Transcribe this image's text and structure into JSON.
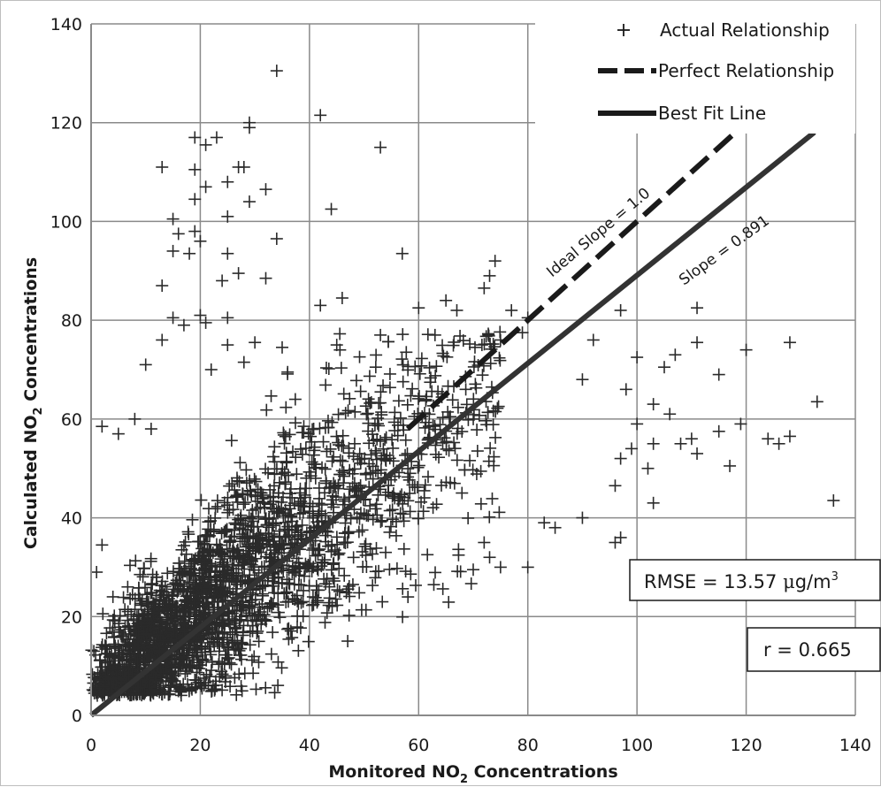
{
  "chart_data": {
    "type": "scatter",
    "xlabel": "Monitored NO",
    "xlabel_sub": "2",
    "xlabel_suffix": " Concentrations",
    "ylabel": "Calculated NO",
    "ylabel_sub": "2",
    "ylabel_suffix": " Concentrations",
    "xlim": [
      0,
      140
    ],
    "ylim": [
      0,
      140
    ],
    "xticks": [
      "0",
      "20",
      "40",
      "60",
      "80",
      "100",
      "120",
      "140"
    ],
    "yticks": [
      "0",
      "20",
      "40",
      "60",
      "80",
      "100",
      "120",
      "140"
    ],
    "grid": true,
    "legend_position": "top-right",
    "legend": [
      {
        "label": "Actual Relationship",
        "style": "plus"
      },
      {
        "label": "Perfect Relationship",
        "style": "dashed"
      },
      {
        "label": "Best Fit Line",
        "style": "solid"
      }
    ],
    "series": [
      {
        "name": "Actual Relationship",
        "marker": "plus",
        "points": [
          [
            34,
            130.5
          ],
          [
            42,
            121.5
          ],
          [
            29,
            120
          ],
          [
            29,
            119
          ],
          [
            53,
            115
          ],
          [
            19,
            117
          ],
          [
            21,
            115.5
          ],
          [
            23,
            117
          ],
          [
            13,
            111
          ],
          [
            19,
            110.5
          ],
          [
            28,
            111
          ],
          [
            27,
            111
          ],
          [
            32,
            106.5
          ],
          [
            19,
            104.5
          ],
          [
            21,
            107
          ],
          [
            25,
            108
          ],
          [
            29,
            104
          ],
          [
            44,
            102.5
          ],
          [
            25,
            101
          ],
          [
            15,
            100.5
          ],
          [
            16,
            97.5
          ],
          [
            19,
            98
          ],
          [
            20,
            96
          ],
          [
            34,
            96.5
          ],
          [
            15,
            94
          ],
          [
            18,
            93.5
          ],
          [
            25,
            93.5
          ],
          [
            57,
            93.5
          ],
          [
            74,
            92
          ],
          [
            73,
            89
          ],
          [
            72,
            86.5
          ],
          [
            32,
            88.5
          ],
          [
            24,
            88
          ],
          [
            27,
            89.5
          ],
          [
            13,
            87
          ],
          [
            46,
            84.5
          ],
          [
            42,
            83
          ],
          [
            65,
            84
          ],
          [
            60,
            82.5
          ],
          [
            67,
            82
          ],
          [
            77,
            82
          ],
          [
            80,
            80.5
          ],
          [
            97,
            82
          ],
          [
            111,
            82.5
          ],
          [
            15,
            80.5
          ],
          [
            20,
            81
          ],
          [
            25,
            80.5
          ],
          [
            17,
            79
          ],
          [
            21,
            79.5
          ],
          [
            25,
            75
          ],
          [
            13,
            76
          ],
          [
            30,
            75.5
          ],
          [
            35,
            74.5
          ],
          [
            45,
            75
          ],
          [
            53,
            77
          ],
          [
            63,
            77
          ],
          [
            75,
            76
          ],
          [
            92,
            76
          ],
          [
            100,
            72.5
          ],
          [
            111,
            75.5
          ],
          [
            128,
            75.5
          ],
          [
            107,
            73
          ],
          [
            105,
            70.5
          ],
          [
            10,
            71
          ],
          [
            22,
            70
          ],
          [
            28,
            71.5
          ],
          [
            36,
            69.5
          ],
          [
            115,
            69
          ],
          [
            90,
            68
          ],
          [
            98,
            66
          ],
          [
            103,
            63
          ],
          [
            106,
            61
          ],
          [
            133,
            63.5
          ],
          [
            2,
            58.5
          ],
          [
            5,
            57
          ],
          [
            8,
            60
          ],
          [
            11,
            58
          ],
          [
            100,
            59
          ],
          [
            103,
            55
          ],
          [
            110,
            56
          ],
          [
            119,
            59
          ],
          [
            120,
            74
          ],
          [
            124,
            56
          ],
          [
            126,
            55
          ],
          [
            128,
            56.5
          ],
          [
            115,
            57.5
          ],
          [
            117,
            50.5
          ],
          [
            108,
            55
          ],
          [
            111,
            53
          ],
          [
            97,
            52
          ],
          [
            99,
            54
          ],
          [
            102,
            50
          ],
          [
            96,
            46.5
          ],
          [
            103,
            43
          ],
          [
            136,
            43.5
          ],
          [
            96,
            35
          ],
          [
            97,
            36
          ],
          [
            90,
            40
          ],
          [
            83,
            39
          ],
          [
            85,
            38
          ],
          [
            80,
            30
          ],
          [
            75,
            30
          ],
          [
            70,
            29.5
          ],
          [
            72,
            35
          ],
          [
            73,
            32
          ],
          [
            2,
            34.5
          ],
          [
            1,
            29
          ],
          [
            4,
            24
          ],
          [
            0.5,
            13
          ],
          [
            0.5,
            5
          ]
        ]
      },
      {
        "name": "Perfect Relationship",
        "style": "dashed",
        "x": [
          0,
          140
        ],
        "y": [
          0,
          140
        ]
      },
      {
        "name": "Best Fit Line",
        "style": "solid",
        "slope": 0.891,
        "x": [
          0,
          140
        ],
        "y": [
          0,
          124.74
        ]
      }
    ],
    "annotations": [
      {
        "text": "Ideal Slope = 1.0"
      },
      {
        "text": "Slope = 0.891"
      }
    ],
    "stats": {
      "rmse_prefix": "RMSE = 13.57 ",
      "rmse_mu": "μ",
      "rmse_unit": "g/m",
      "rmse_sup": "3",
      "r_text": "r = 0.665"
    }
  }
}
